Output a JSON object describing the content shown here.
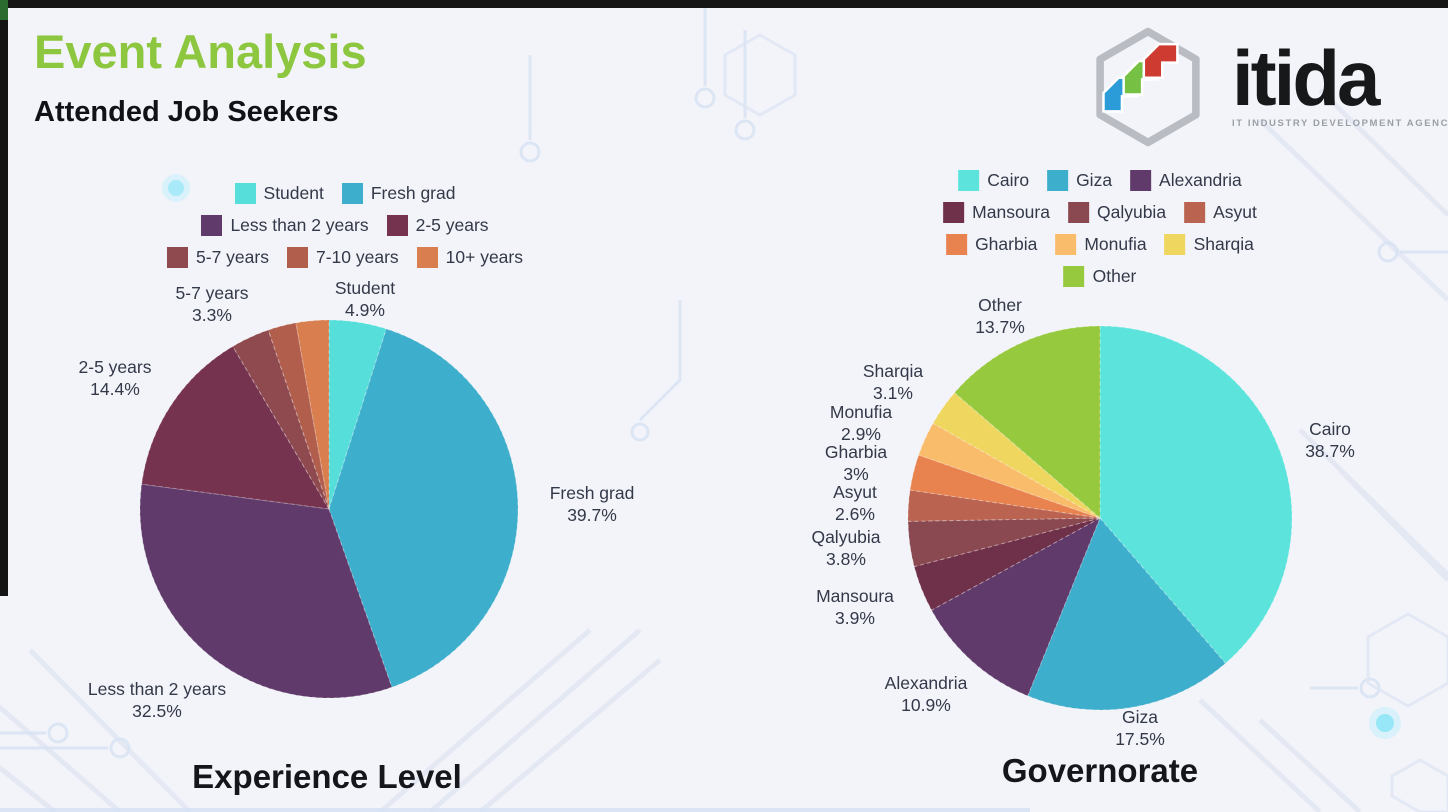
{
  "header": {
    "title": "Event Analysis",
    "subtitle": "Attended Job Seekers"
  },
  "logo": {
    "name": "itida",
    "tagline": "IT INDUSTRY DEVELOPMENT AGENCY",
    "mark_colors": {
      "hexagon": "#b9bcc2",
      "blue": "#2B9CD8",
      "green": "#76C043",
      "red": "#CE3B31"
    }
  },
  "colors": {
    "brand_green": "#8DC63F",
    "label_text": "#333949",
    "chart_title_text": "#14161c"
  },
  "chart_data": [
    {
      "type": "pie",
      "title": "Experience Level",
      "legend_position": "top",
      "start_angle": "12 o'clock, clockwise",
      "slices": [
        {
          "label": "Student",
          "value": 4.9,
          "display": "4.9%",
          "color": "#56DEDA"
        },
        {
          "label": "Fresh grad",
          "value": 39.7,
          "display": "39.7%",
          "color": "#3DAECC"
        },
        {
          "label": "Less than 2 years",
          "value": 32.5,
          "display": "32.5%",
          "color": "#5F3A6B"
        },
        {
          "label": "2-5 years",
          "value": 14.4,
          "display": "14.4%",
          "color": "#76334F"
        },
        {
          "label": "5-7 years",
          "value": 3.3,
          "display": "3.3%",
          "color": "#8E4A4F"
        },
        {
          "label": "7-10 years",
          "value": 2.4,
          "display": "",
          "color": "#B25E4C",
          "estimated": true
        },
        {
          "label": "10+ years",
          "value": 2.8,
          "display": "",
          "color": "#D97E4E",
          "estimated": true
        }
      ]
    },
    {
      "type": "pie",
      "title": "Governorate",
      "legend_position": "top",
      "start_angle": "12 o'clock, clockwise",
      "slices": [
        {
          "label": "Cairo",
          "value": 38.7,
          "display": "38.7%",
          "color": "#5BE3DC"
        },
        {
          "label": "Giza",
          "value": 17.5,
          "display": "17.5%",
          "color": "#3DAECC"
        },
        {
          "label": "Alexandria",
          "value": 10.9,
          "display": "10.9%",
          "color": "#5F3A6B"
        },
        {
          "label": "Mansoura",
          "value": 3.9,
          "display": "3.9%",
          "color": "#6F3049"
        },
        {
          "label": "Qalyubia",
          "value": 3.8,
          "display": "3.8%",
          "color": "#8A4950"
        },
        {
          "label": "Asyut",
          "value": 2.6,
          "display": "2.6%",
          "color": "#BA6351"
        },
        {
          "label": "Gharbia",
          "value": 3,
          "display": "3%",
          "color": "#E8834F"
        },
        {
          "label": "Monufia",
          "value": 2.9,
          "display": "2.9%",
          "color": "#F9BC6B"
        },
        {
          "label": "Sharqia",
          "value": 3.1,
          "display": "3.1%",
          "color": "#EFD65F"
        },
        {
          "label": "Other",
          "value": 13.7,
          "display": "13.7%",
          "color": "#97C93F"
        }
      ]
    }
  ]
}
